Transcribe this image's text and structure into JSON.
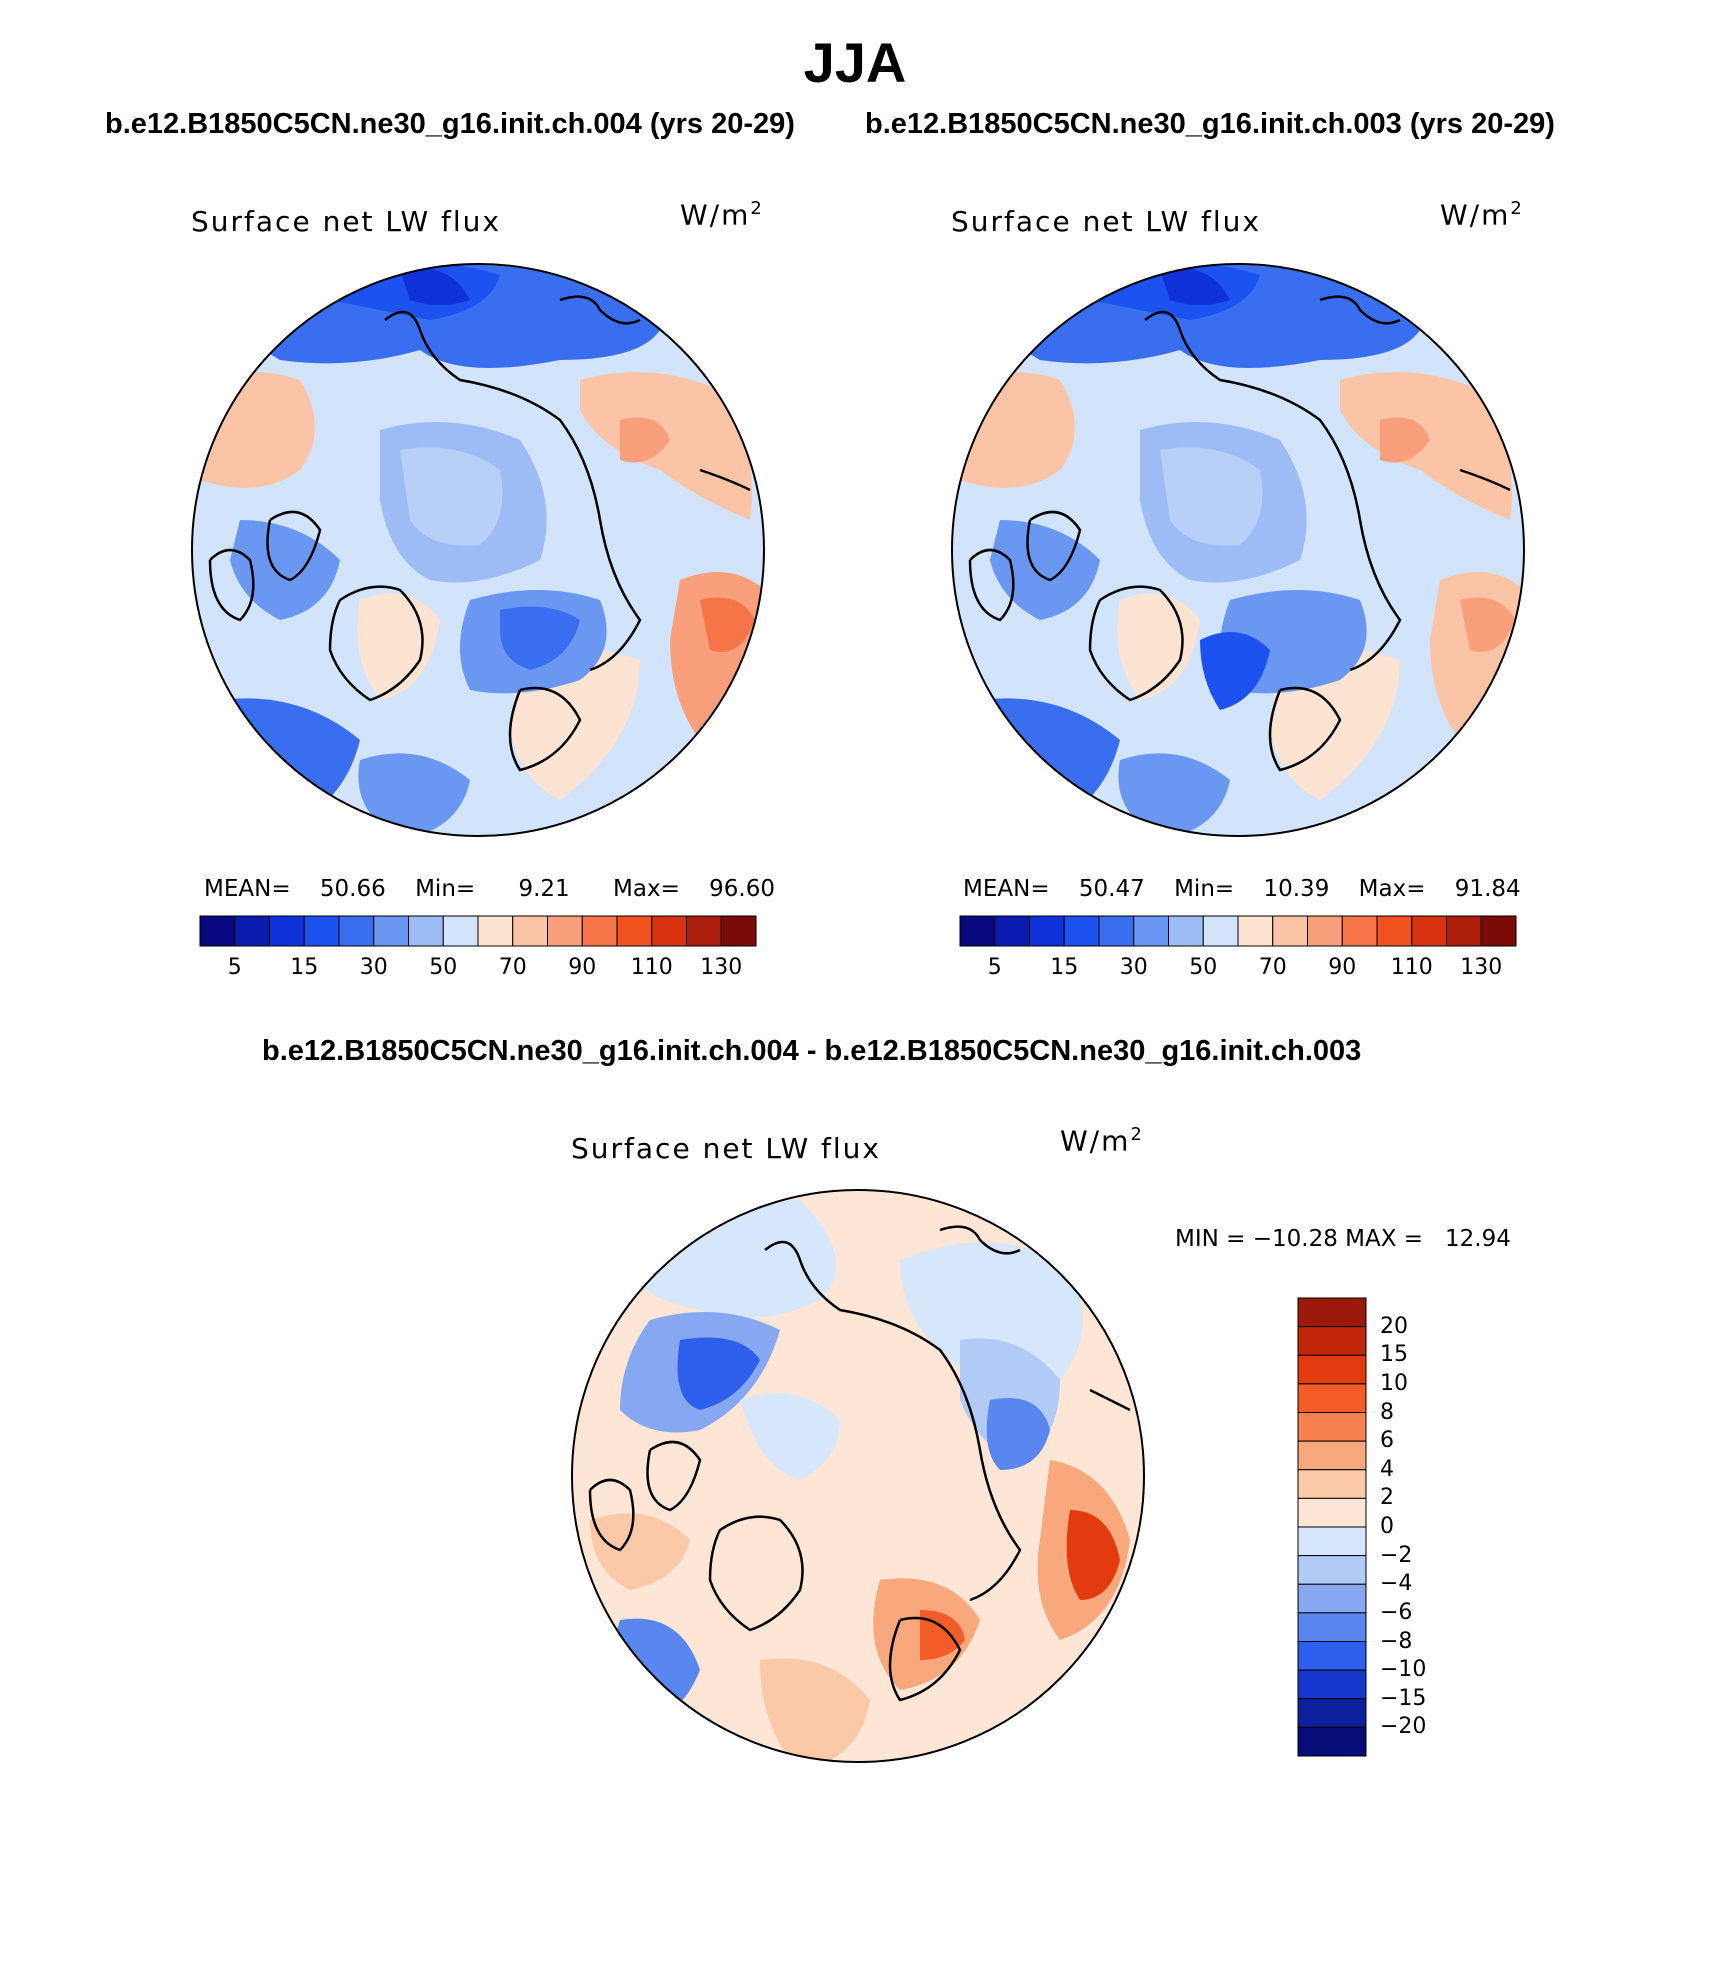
{
  "title": "JJA",
  "top_subtitle_left": "b.e12.B1850C5CN.ne30_g16.init.ch.004 (yrs 20-29)",
  "top_subtitle_right": "b.e12.B1850C5CN.ne30_g16.init.ch.003 (yrs 20-29)",
  "diff_subtitle": "b.e12.B1850C5CN.ne30_g16.init.ch.004 - b.e12.B1850C5CN.ne30_g16.init.ch.003",
  "units_text": "W/m",
  "units_exp": "2",
  "panels": [
    {
      "label": "Surface net LW flux",
      "mean_label": "MEAN=",
      "mean_value": "50.66",
      "min_label": "Min=",
      "min_value": "9.21",
      "max_label": "Max=",
      "max_value": "96.60"
    },
    {
      "label": "Surface net LW flux",
      "mean_label": "MEAN=",
      "mean_value": "50.47",
      "min_label": "Min=",
      "min_value": "10.39",
      "max_label": "Max=",
      "max_value": "91.84"
    }
  ],
  "diff_panel": {
    "label": "Surface net LW flux",
    "minmax_text": "MIN = −10.28 MAX =   12.94"
  },
  "abs_colorbar": {
    "colors": [
      "#08097f",
      "#0a1bb0",
      "#0e32d8",
      "#1c52ef",
      "#3a6ef0",
      "#6a97f2",
      "#9dbcf6",
      "#d2e4fb",
      "#fde3d2",
      "#fcc4a6",
      "#f99f7c",
      "#f57548",
      "#f2521f",
      "#d73311",
      "#ac1d0c",
      "#7c0a08"
    ],
    "ticks": [
      "5",
      "15",
      "30",
      "50",
      "70",
      "90",
      "110",
      "130"
    ]
  },
  "diff_colorbar": {
    "colors_top_to_bottom": [
      "#9b1a0c",
      "#c2260b",
      "#e33b0f",
      "#f45d2a",
      "#f7804f",
      "#f9a77c",
      "#fbc8a8",
      "#fde6d6",
      "#d7e7fb",
      "#b1cbf6",
      "#86a8f2",
      "#5a86ef",
      "#2d5fec",
      "#1438cd",
      "#0c1f9c",
      "#060d78"
    ],
    "ticks": [
      "20",
      "15",
      "10",
      "8",
      "6",
      "4",
      "2",
      "0",
      "−2",
      "−4",
      "−6",
      "−8",
      "−10",
      "−15",
      "−20"
    ]
  }
}
